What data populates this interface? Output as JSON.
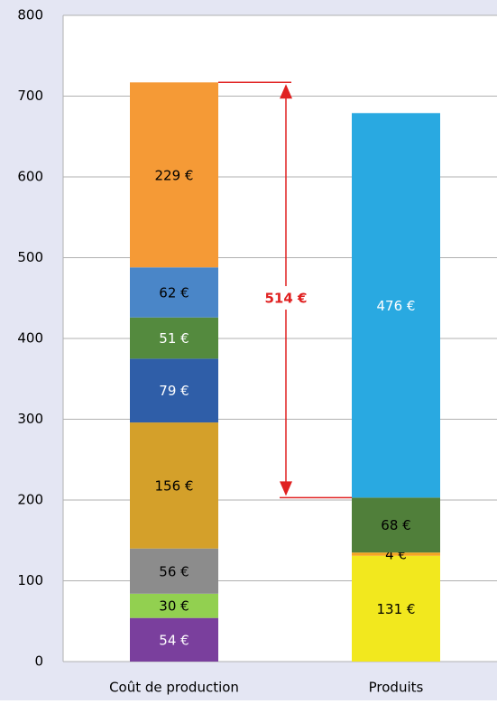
{
  "chart_data": {
    "type": "stacked-bar",
    "categories": [
      "Coût de production",
      "Produits"
    ],
    "stacks": [
      [
        {
          "value": 54,
          "value_label": "54 €",
          "color": "#7a3f9d",
          "text_color": "#ffffff"
        },
        {
          "value": 30,
          "value_label": "30 €",
          "color": "#92d050",
          "text_color": "#000000"
        },
        {
          "value": 56,
          "value_label": "56 €",
          "color": "#8c8c8c",
          "text_color": "#000000"
        },
        {
          "value": 156,
          "value_label": "156 €",
          "color": "#d4a02a",
          "text_color": "#000000"
        },
        {
          "value": 79,
          "value_label": "79 €",
          "color": "#2f5ea8",
          "text_color": "#ffffff"
        },
        {
          "value": 51,
          "value_label": "51 €",
          "color": "#548a3e",
          "text_color": "#ffffff"
        },
        {
          "value": 62,
          "value_label": "62 €",
          "color": "#4a86c8",
          "text_color": "#000000"
        },
        {
          "value": 229,
          "value_label": "229 €",
          "color": "#f59a36",
          "text_color": "#000000"
        }
      ],
      [
        {
          "value": 131,
          "value_label": "131 €",
          "color": "#f2e81e",
          "text_color": "#000000"
        },
        {
          "value": 4,
          "value_label": "4 €",
          "color": "#f5a623",
          "text_color": "#000000"
        },
        {
          "value": 68,
          "value_label": "68 €",
          "color": "#507f3a",
          "text_color": "#000000"
        },
        {
          "value": 476,
          "value_label": "476 €",
          "color": "#29a9e1",
          "text_color": "#ffffff"
        }
      ]
    ],
    "annotation": {
      "label": "514 €",
      "color": "#e02020"
    },
    "ylim": [
      0,
      800
    ],
    "yticks": [
      0,
      100,
      200,
      300,
      400,
      500,
      600,
      700,
      800
    ],
    "grid": true
  }
}
